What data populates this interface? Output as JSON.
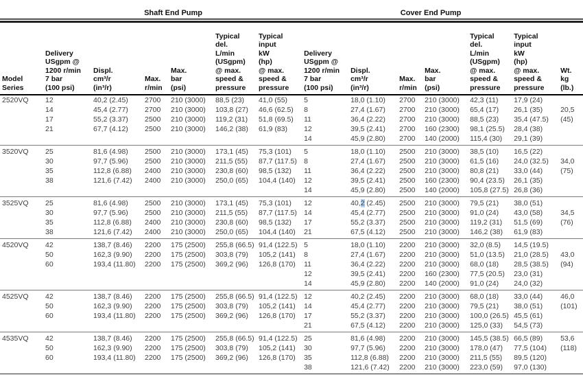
{
  "table": {
    "highlight_color": "#b3d1ee",
    "group_headers": {
      "shaft": "Shaft End Pump",
      "cover": "Cover End Pump"
    },
    "columns": [
      {
        "id": "model",
        "label": "Model\nSeries"
      },
      {
        "id": "shaft-delivery",
        "label": "Delivery\nUSgpm @\n1200 r/min\n7 bar\n(100 psi)"
      },
      {
        "id": "shaft-displ",
        "label": "Displ.\ncm³/r\n(in³/r)"
      },
      {
        "id": "shaft-max-rpm",
        "label": "Max.\nr/min"
      },
      {
        "id": "shaft-max-bar",
        "label": "Max.\nbar\n(psi)"
      },
      {
        "id": "shaft-typical-del",
        "label": "Typical\ndel.\nL/min\n(USgpm)\n@ max.\nspeed &\npressure"
      },
      {
        "id": "shaft-typical-input",
        "label": "Typical\ninput\nkW\n(hp)\n@ max.\nspeed &\npressure"
      },
      {
        "id": "cover-delivery",
        "label": "Delivery\nUSgpm @\n1200 r/min\n7 bar\n(100 psi)"
      },
      {
        "id": "cover-displ",
        "label": "Displ.\ncm³/r\n(in³/r)"
      },
      {
        "id": "cover-max-rpm",
        "label": "Max.\nr/min"
      },
      {
        "id": "cover-max-bar",
        "label": "Max.\nbar\n(psi)"
      },
      {
        "id": "cover-typical-del",
        "label": "Typical\ndel.\nL/min\n(USgpm)\n@ max.\nspeed &\npressure"
      },
      {
        "id": "cover-typical-input",
        "label": "Typical\ninput\nkW\n(hp)\n@ max.\nspeed &\npressure"
      },
      {
        "id": "wt",
        "label": "Wt.\nkg\n(lb.)"
      }
    ],
    "blocks": [
      {
        "model": "2520VQ",
        "rows": [
          [
            "12",
            "40,2 (2.45)",
            "2700",
            "210 (3000)",
            "88,5 (23)",
            "41,0 (55)",
            "5",
            "18,0 (1.10)",
            "2700",
            "210 (3000)",
            "42,3 (11)",
            "17,9 (24)",
            ""
          ],
          [
            "14",
            "45,4 (2.77)",
            "2700",
            "210 (3000)",
            "103,8 (27)",
            "46,6 (62.5)",
            "8",
            "27,4 (1.67)",
            "2700",
            "210 (3000)",
            "65,4 (17)",
            "26,1 (35)",
            "20,5"
          ],
          [
            "17",
            "55,2 (3.37)",
            "2500",
            "210 (3000)",
            "119,2 (31)",
            "51,8 (69.5)",
            "11",
            "36,4 (2.22)",
            "2700",
            "210 (3000)",
            "88,5 (23)",
            "35,4 (47.5)",
            "(45)"
          ],
          [
            "21",
            "67,7 (4.12)",
            "2500",
            "210 (3000)",
            "146,2 (38)",
            "61,9 (83)",
            "12",
            "39,5 (2.41)",
            "2700",
            "160 (2300)",
            "98,1 (25.5)",
            "28,4 (38)",
            ""
          ],
          [
            "",
            "",
            "",
            "",
            "",
            "",
            "14",
            "45,9 (2.80)",
            "2700",
            "140 (2000)",
            "115,4 (30)",
            "29,1 (39)",
            ""
          ]
        ]
      },
      {
        "model": "3520VQ",
        "rows": [
          [
            "25",
            "81,6 (4.98)",
            "2500",
            "210 (3000)",
            "173,1 (45)",
            "75,3 (101)",
            "5",
            "18,0 (1.10)",
            "2500",
            "210 (3000)",
            "38,5 (10)",
            "16,5 (22)",
            ""
          ],
          [
            "30",
            "97,7 (5.96)",
            "2500",
            "210 (3000)",
            "211,5 (55)",
            "87,7 (117.5)",
            "8",
            "27,4 (1.67)",
            "2500",
            "210 (3000)",
            "61,5 (16)",
            "24,0 (32.5)",
            "34,0"
          ],
          [
            "35",
            "112,8 (6.88)",
            "2400",
            "210 (3000)",
            "230,8 (60)",
            "98,5 (132)",
            "11",
            "36,4 (2.22)",
            "2500",
            "210 (3000)",
            "80,8 (21)",
            "33,0 (44)",
            "(75)"
          ],
          [
            "38",
            "121,6 (7.42)",
            "2400",
            "210 (3000)",
            "250,0 (65)",
            "104,4 (140)",
            "12",
            "39,5 (2.41)",
            "2500",
            "160 (2300)",
            "90,4 (23.5)",
            "26,1 (35)",
            ""
          ],
          [
            "",
            "",
            "",
            "",
            "",
            "",
            "14",
            "45,9 (2.80)",
            "2500",
            "140 (2000)",
            "105,8 (27.5)",
            "26,8 (36)",
            ""
          ]
        ]
      },
      {
        "model": "3525VQ",
        "rows": [
          [
            "25",
            "81,6 (4.98)",
            "2500",
            "210 (3000)",
            "173,1 (45)",
            "75,3 (101)",
            "12",
            "40,«2» (2.45)",
            "2500",
            "210 (3000)",
            "79,5 (21)",
            "38,0 (51)",
            ""
          ],
          [
            "30",
            "97,7 (5.96)",
            "2500",
            "210 (3000)",
            "211,5 (55)",
            "87,7 (117.5)",
            "14",
            "45,4 (2.77)",
            "2500",
            "210 (3000)",
            "91,0 (24)",
            "43,0 (58)",
            "34,5"
          ],
          [
            "35",
            "112,8 (6.88)",
            "2400",
            "210 (3000)",
            "230,8 (60)",
            "98,5 (132)",
            "17",
            "55,2 (3.37)",
            "2500",
            "210 (3000)",
            "119,2 (31)",
            "51,5 (69)",
            "(76)"
          ],
          [
            "38",
            "121,6 (7.42)",
            "2400",
            "210 (3000)",
            "250,0 (65)",
            "104,4 (140)",
            "21",
            "67,5 (4.12)",
            "2500",
            "210 (3000)",
            "146,2 (38)",
            "61,9 (83)",
            ""
          ]
        ]
      },
      {
        "model": "4520VQ",
        "rows": [
          [
            "42",
            "138,7 (8.46)",
            "2200",
            "175 (2500)",
            "255,8 (66.5)",
            "91,4 (122.5)",
            "5",
            "18,0 (1.10)",
            "2200",
            "210 (3000)",
            "32,0 (8.5)",
            "14,5 (19.5)",
            ""
          ],
          [
            "50",
            "162,3 (9.90)",
            "2200",
            "175 (2500)",
            "303,8 (79)",
            "105,2 (141)",
            "8",
            "27,4 (1.67)",
            "2200",
            "210 (3000)",
            "51,0 (13.5)",
            "21,0 (28.5)",
            "43,0"
          ],
          [
            "60",
            "193,4 (11.80)",
            "2200",
            "175 (2500)",
            "369,2 (96)",
            "126,8 (170)",
            "11",
            "36,4 (2.22)",
            "2200",
            "210 (3000)",
            "68,0 (18)",
            "28,5 (38.5)",
            "(94)"
          ],
          [
            "",
            "",
            "",
            "",
            "",
            "",
            "12",
            "39,5 (2.41)",
            "2200",
            "160 (2300)",
            "77,5 (20.5)",
            "23,0 (31)",
            ""
          ],
          [
            "",
            "",
            "",
            "",
            "",
            "",
            "14",
            "45,9 (2.80)",
            "2200",
            "140 (2000)",
            "91,0 (24)",
            "24,0 (32)",
            ""
          ]
        ]
      },
      {
        "model": "4525VQ",
        "rows": [
          [
            "42",
            "138,7 (8.46)",
            "2200",
            "175 (2500)",
            "255,8 (66.5)",
            "91,4 (122.5)",
            "12",
            "40,2 (2.45)",
            "2200",
            "210 (3000)",
            "68,0 (18)",
            "33,0 (44)",
            "46,0"
          ],
          [
            "50",
            "162,3 (9.90)",
            "2200",
            "175 (2500)",
            "303,8 (79)",
            "105,2 (141)",
            "14",
            "45,4 (2.77)",
            "2200",
            "210 (3000)",
            "79,5 (21)",
            "38,0 (51)",
            "(101)"
          ],
          [
            "60",
            "193,4 (11.80)",
            "2200",
            "175 (2500)",
            "369,2 (96)",
            "126,8 (170)",
            "17",
            "55,2 (3.37)",
            "2200",
            "210 (3000)",
            "100,0 (26.5)",
            "45,5 (61)",
            ""
          ],
          [
            "",
            "",
            "",
            "",
            "",
            "",
            "21",
            "67,5 (4.12)",
            "2200",
            "210 (3000)",
            "125,0 (33)",
            "54,5 (73)",
            ""
          ]
        ]
      },
      {
        "model": "4535VQ",
        "rows": [
          [
            "42",
            "138,7 (8.46)",
            "2200",
            "175 (2500)",
            "255,8 (66.5)",
            "91,4 (122.5)",
            "25",
            "81,6 (4.98)",
            "2200",
            "210 (3000)",
            "145,5 (38.5)",
            "66,5 (89)",
            "53,6"
          ],
          [
            "50",
            "162,3 (9.90)",
            "2200",
            "175 (2500)",
            "303,8 (79)",
            "105,2 (141)",
            "30",
            "97,7 (5.96)",
            "2200",
            "210 (3000)",
            "178,0 (47)",
            "77,5 (104)",
            "(118)"
          ],
          [
            "60",
            "193,4 (11.80)",
            "2200",
            "175 (2500)",
            "369,2 (96)",
            "126,8 (170)",
            "35",
            "112,8 (6.88)",
            "2200",
            "210 (3000)",
            "211,5 (55)",
            "89,5 (120)",
            ""
          ],
          [
            "",
            "",
            "",
            "",
            "",
            "",
            "38",
            "121,6 (7.42)",
            "2200",
            "210 (3000)",
            "223,0 (59)",
            "97,0 (130)",
            ""
          ]
        ]
      }
    ]
  }
}
